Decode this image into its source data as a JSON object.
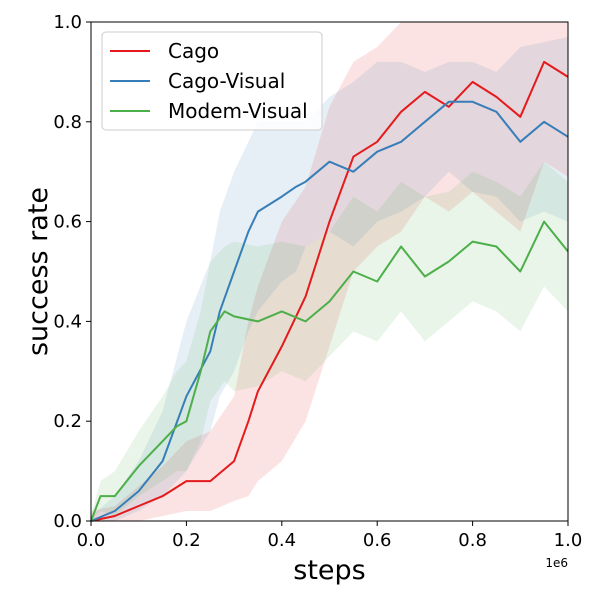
{
  "chart_data": {
    "type": "line",
    "title": "",
    "xlabel": "steps",
    "ylabel": "success rate",
    "x_multiplier_label": "1e6",
    "xlim": [
      0.0,
      1.0
    ],
    "ylim": [
      0.0,
      1.0
    ],
    "x_ticks": [
      0.0,
      0.2,
      0.4,
      0.6,
      0.8,
      1.0
    ],
    "x_tick_labels": [
      "0.0",
      "0.2",
      "0.4",
      "0.6",
      "0.8",
      "1.0"
    ],
    "y_ticks": [
      0.0,
      0.2,
      0.4,
      0.6,
      0.8,
      1.0
    ],
    "y_tick_labels": [
      "0.0",
      "0.2",
      "0.4",
      "0.6",
      "0.8",
      "1.0"
    ],
    "grid": false,
    "legend_position": "top-left",
    "series": [
      {
        "name": "Cago",
        "color": "#e41a1c",
        "x": [
          0.0,
          0.05,
          0.1,
          0.15,
          0.2,
          0.25,
          0.3,
          0.33,
          0.35,
          0.4,
          0.45,
          0.5,
          0.55,
          0.6,
          0.65,
          0.7,
          0.75,
          0.8,
          0.85,
          0.9,
          0.95,
          1.0
        ],
        "y": [
          0.0,
          0.01,
          0.03,
          0.05,
          0.08,
          0.08,
          0.12,
          0.2,
          0.26,
          0.35,
          0.45,
          0.6,
          0.73,
          0.76,
          0.82,
          0.86,
          0.83,
          0.88,
          0.85,
          0.81,
          0.92,
          0.89
        ],
        "upper": [
          0.02,
          0.03,
          0.07,
          0.11,
          0.16,
          0.18,
          0.25,
          0.4,
          0.47,
          0.6,
          0.67,
          0.83,
          0.92,
          0.95,
          1.0,
          1.0,
          1.0,
          1.0,
          1.0,
          1.0,
          1.0,
          1.0
        ],
        "lower": [
          0.0,
          0.0,
          0.0,
          0.01,
          0.02,
          0.02,
          0.04,
          0.05,
          0.08,
          0.12,
          0.2,
          0.35,
          0.5,
          0.55,
          0.58,
          0.65,
          0.62,
          0.66,
          0.62,
          0.58,
          0.72,
          0.69
        ]
      },
      {
        "name": "Cago-Visual",
        "color": "#377eb8",
        "x": [
          0.0,
          0.05,
          0.1,
          0.15,
          0.2,
          0.25,
          0.27,
          0.3,
          0.33,
          0.35,
          0.4,
          0.43,
          0.45,
          0.5,
          0.55,
          0.6,
          0.65,
          0.7,
          0.75,
          0.8,
          0.85,
          0.9,
          0.95,
          1.0
        ],
        "y": [
          0.0,
          0.02,
          0.06,
          0.12,
          0.25,
          0.34,
          0.42,
          0.5,
          0.58,
          0.62,
          0.65,
          0.67,
          0.68,
          0.72,
          0.7,
          0.74,
          0.76,
          0.8,
          0.84,
          0.84,
          0.82,
          0.76,
          0.8,
          0.77
        ],
        "upper": [
          0.01,
          0.05,
          0.12,
          0.22,
          0.4,
          0.52,
          0.62,
          0.7,
          0.76,
          0.8,
          0.8,
          0.8,
          0.8,
          0.85,
          0.88,
          0.92,
          0.92,
          0.9,
          0.92,
          0.92,
          0.9,
          0.95,
          0.96,
          0.97
        ],
        "lower": [
          0.0,
          0.0,
          0.02,
          0.05,
          0.1,
          0.18,
          0.25,
          0.3,
          0.38,
          0.42,
          0.48,
          0.5,
          0.55,
          0.58,
          0.55,
          0.6,
          0.62,
          0.65,
          0.7,
          0.66,
          0.65,
          0.6,
          0.62,
          0.6
        ]
      },
      {
        "name": "Modem-Visual",
        "color": "#4daf4a",
        "x": [
          0.0,
          0.02,
          0.05,
          0.1,
          0.15,
          0.18,
          0.2,
          0.23,
          0.25,
          0.28,
          0.3,
          0.35,
          0.4,
          0.45,
          0.5,
          0.55,
          0.6,
          0.65,
          0.7,
          0.75,
          0.8,
          0.85,
          0.9,
          0.95,
          1.0
        ],
        "y": [
          0.0,
          0.05,
          0.05,
          0.11,
          0.16,
          0.19,
          0.2,
          0.3,
          0.38,
          0.42,
          0.41,
          0.4,
          0.42,
          0.4,
          0.44,
          0.5,
          0.48,
          0.55,
          0.49,
          0.52,
          0.56,
          0.55,
          0.5,
          0.6,
          0.54
        ],
        "upper": [
          0.01,
          0.08,
          0.1,
          0.18,
          0.25,
          0.3,
          0.32,
          0.42,
          0.52,
          0.55,
          0.56,
          0.55,
          0.56,
          0.55,
          0.58,
          0.65,
          0.62,
          0.68,
          0.65,
          0.66,
          0.7,
          0.68,
          0.65,
          0.72,
          0.68
        ],
        "lower": [
          0.0,
          0.02,
          0.01,
          0.05,
          0.08,
          0.1,
          0.1,
          0.16,
          0.24,
          0.28,
          0.26,
          0.27,
          0.3,
          0.28,
          0.33,
          0.38,
          0.36,
          0.42,
          0.36,
          0.4,
          0.44,
          0.42,
          0.38,
          0.47,
          0.42
        ]
      }
    ]
  }
}
